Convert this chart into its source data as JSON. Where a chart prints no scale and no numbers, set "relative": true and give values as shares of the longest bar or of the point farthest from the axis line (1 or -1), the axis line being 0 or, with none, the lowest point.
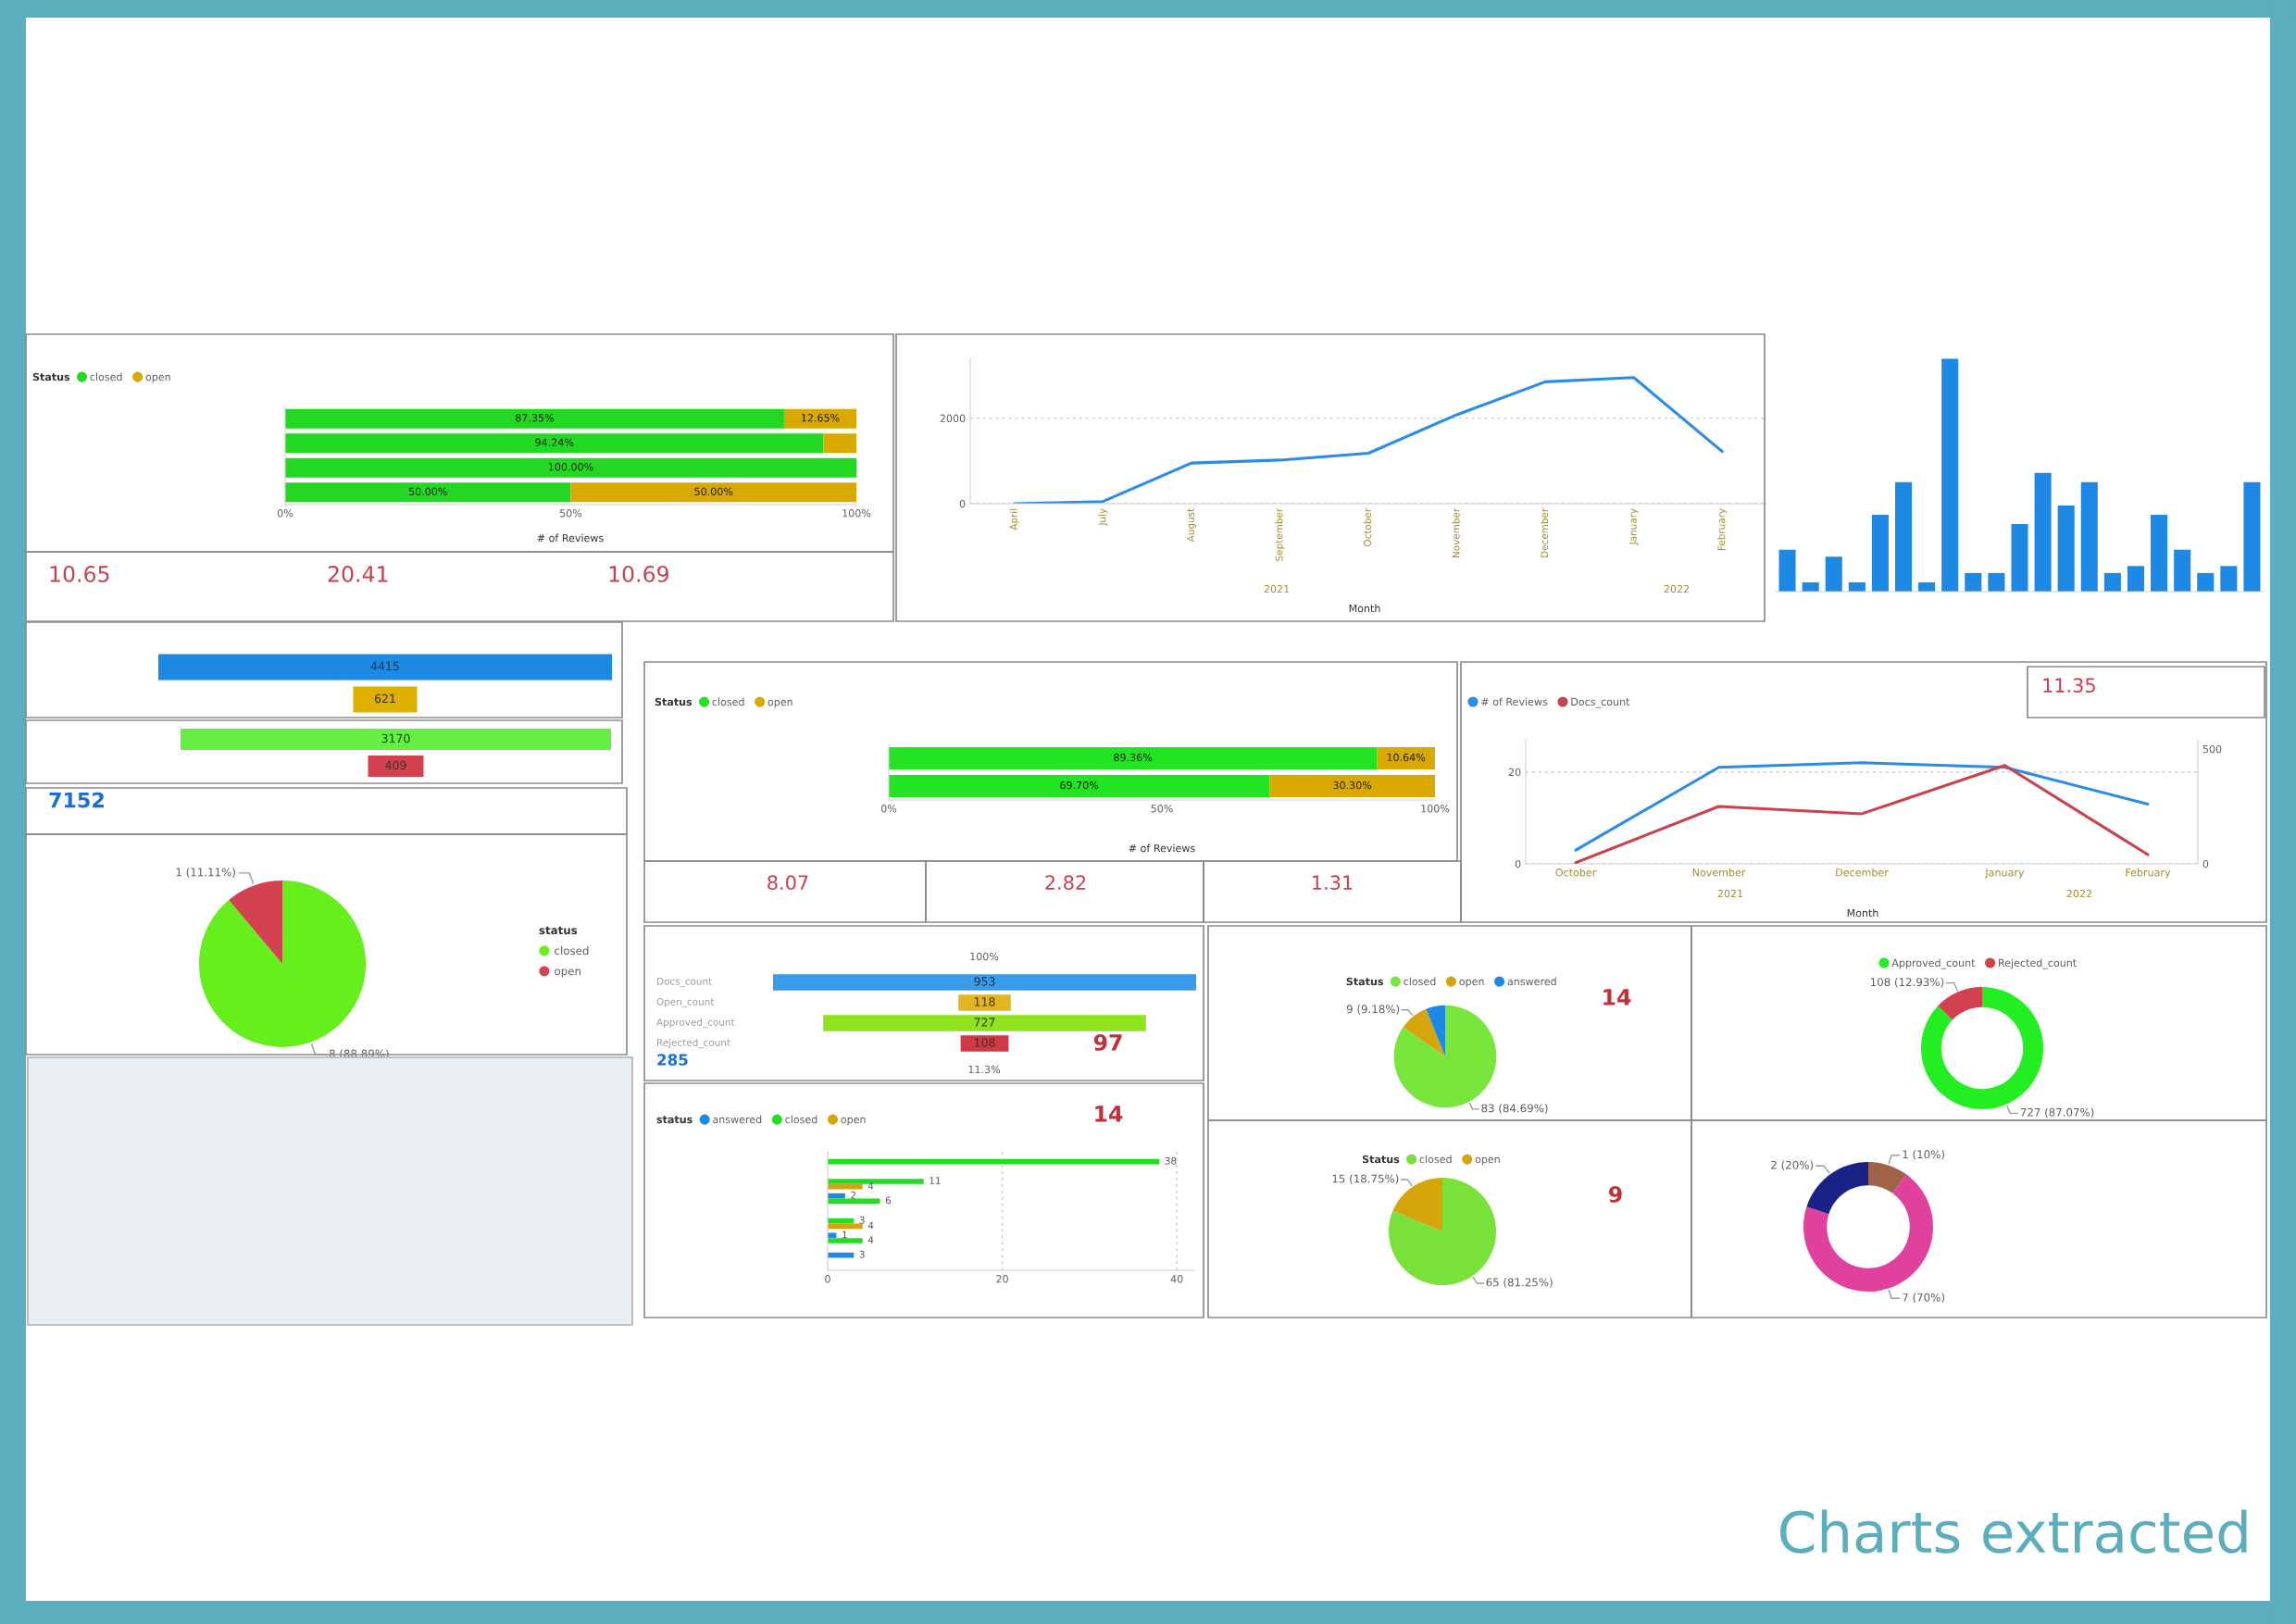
{
  "chart_data": [
    {
      "type": "bar",
      "orientation": "horizontal",
      "stacked": true,
      "categories": [
        null,
        null,
        null,
        null
      ],
      "series": [
        {
          "name": "closed",
          "color": "#22d822",
          "values": [
            87.35,
            94.24,
            100,
            50
          ],
          "value_labels": [
            "87.35%",
            "94.24%",
            "100.00%",
            "50.00%"
          ]
        },
        {
          "name": "open",
          "color": "#d9a900",
          "values": [
            12.65,
            5.76,
            null,
            50
          ],
          "value_labels": [
            "12.65%",
            null,
            null,
            "50.00%"
          ]
        }
      ],
      "xlim": [
        0,
        100
      ],
      "xticks": [
        {
          "value": 0,
          "label": "0%"
        },
        {
          "value": 50,
          "label": "50%"
        },
        {
          "value": 100,
          "label": "100%"
        }
      ],
      "xlabel": "# of Reviews",
      "legend": "top left",
      "legend_title": "Status"
    },
    {
      "type": "other",
      "annotations": [
        "10.65",
        "20.41",
        "10.69"
      ]
    },
    {
      "type": "line",
      "categories": [
        "April",
        "July",
        "August",
        "September",
        "October",
        "November",
        "December",
        "January",
        "February"
      ],
      "series": [
        {
          "color": "#2b8ce6",
          "values": [
            0,
            50,
            950,
            1020,
            1180,
            2080,
            2850,
            2950,
            1220
          ]
        }
      ],
      "ylim": [
        0,
        3400
      ],
      "yticks": [
        0,
        2000
      ],
      "xlabel": "Month",
      "grid": "y",
      "annotations": [
        "2021",
        "2022"
      ]
    },
    {
      "type": "bar",
      "relative": true,
      "categories": [
        null,
        null,
        null,
        null,
        null,
        null,
        null,
        null,
        null,
        null,
        null,
        null,
        null,
        null,
        null,
        null,
        null,
        null,
        null,
        null,
        null
      ],
      "values": [
        0.18,
        0.04,
        0.15,
        0.04,
        0.33,
        0.47,
        0.04,
        1,
        0.08,
        0.08,
        0.29,
        0.51,
        0.37,
        0.47,
        0.08,
        0.11,
        0.33,
        0.18,
        0.08,
        0.11,
        0.47
      ],
      "color": "#1e88e5"
    },
    {
      "type": "other",
      "categories": [
        null,
        null
      ],
      "values": [
        4415,
        621
      ],
      "colors": [
        "#1e88e5",
        "#e0b000"
      ],
      "data_labels": true
    },
    {
      "type": "other",
      "categories": [
        null,
        null
      ],
      "values": [
        3170,
        409
      ],
      "colors": [
        "#66ee44",
        "#d5404e"
      ],
      "data_labels": true
    },
    {
      "type": "other",
      "annotations": [
        "7152"
      ]
    },
    {
      "type": "pie",
      "categories": [
        "closed",
        "open"
      ],
      "values": [
        8,
        1
      ],
      "colors": [
        "#66ef1c",
        "#d4414f"
      ],
      "value_labels": [
        "8 (88.89%)",
        "1 (11.11%)"
      ],
      "legend": "right",
      "legend_title": "status"
    },
    {
      "type": "bar",
      "orientation": "horizontal",
      "stacked": true,
      "categories": [
        null,
        null
      ],
      "series": [
        {
          "name": "closed",
          "color": "#22e422",
          "values": [
            89.36,
            69.7
          ],
          "value_labels": [
            "89.36%",
            "69.70%"
          ]
        },
        {
          "name": "open",
          "color": "#d9a900",
          "values": [
            10.64,
            30.3
          ],
          "value_labels": [
            "10.64%",
            "30.30%"
          ]
        }
      ],
      "xlim": [
        0,
        100
      ],
      "xticks": [
        {
          "value": 0,
          "label": "0%"
        },
        {
          "value": 50,
          "label": "50%"
        },
        {
          "value": 100,
          "label": "100%"
        }
      ],
      "xlabel": "# of Reviews",
      "legend": "top left",
      "legend_title": "Status"
    },
    {
      "type": "other",
      "annotations": [
        "8.07",
        "2.82",
        "1.31"
      ]
    },
    {
      "type": "line",
      "categories": [
        "October",
        "November",
        "December",
        "January",
        "February"
      ],
      "series": [
        {
          "name": "# of Reviews",
          "color": "#2b8ce6",
          "values": [
            3,
            21,
            22,
            21,
            13
          ]
        },
        {
          "name": "Docs_count",
          "color": "#c8434f",
          "values": [
            5,
            250,
            218,
            428,
            40
          ],
          "axis": "y2"
        }
      ],
      "ylim": [
        0,
        27
      ],
      "yticks": [
        0,
        20
      ],
      "y2lim": [
        0,
        540
      ],
      "y2ticks": [
        0,
        500
      ],
      "xlabel": "Month",
      "grid": "y",
      "legend": "top left",
      "annotations": [
        "2021",
        "2022"
      ]
    },
    {
      "type": "other",
      "annotations": [
        "11.35"
      ]
    },
    {
      "type": "other",
      "categories": [
        "Docs_count",
        "Open_count",
        "Approved_count",
        "Rejected_count"
      ],
      "values": [
        953,
        118,
        727,
        108
      ],
      "colors": [
        "#3a9ce8",
        "#e3b520",
        "#8fe31a",
        "#cf3a47"
      ],
      "data_labels": true,
      "annotations": [
        "100%",
        "11.3%"
      ]
    },
    {
      "type": "other",
      "annotations": [
        "285"
      ]
    },
    {
      "type": "other",
      "annotations": [
        "97"
      ]
    },
    {
      "type": "pie",
      "categories": [
        "closed",
        "open",
        "answered"
      ],
      "values": [
        83,
        9,
        6
      ],
      "colors": [
        "#78e63a",
        "#d6a50a",
        "#1e88e5"
      ],
      "value_labels": [
        "83 (84.69%)",
        "9 (9.18%)",
        null
      ],
      "legend": "top",
      "legend_title": "Status"
    },
    {
      "type": "other",
      "annotations": [
        "14"
      ]
    },
    {
      "type": "donut",
      "categories": [
        "Approved_count",
        "Rejected_count"
      ],
      "values": [
        727,
        108
      ],
      "colors": [
        "#22ee22",
        "#d3414e"
      ],
      "value_labels": [
        "727 (87.07%)",
        "108 (12.93%)"
      ],
      "legend": "top"
    },
    {
      "type": "bar",
      "orientation": "horizontal",
      "categories": [
        null,
        null,
        null,
        null,
        null,
        null
      ],
      "series": [
        {
          "name": "answered",
          "color": "#1e88e5",
          "values": [
            null,
            null,
            2,
            null,
            1,
            3
          ]
        },
        {
          "name": "closed",
          "color": "#22dd22",
          "values": [
            38,
            11,
            6,
            3,
            4,
            null
          ]
        },
        {
          "name": "open",
          "color": "#d6a50a",
          "values": [
            null,
            4,
            null,
            4,
            null,
            null
          ]
        }
      ],
      "xlim": [
        0,
        42
      ],
      "xticks": [
        0,
        20,
        40
      ],
      "grid": "x",
      "data_labels": true,
      "legend": "top left",
      "legend_title": "status"
    },
    {
      "type": "other",
      "annotations": [
        "14"
      ]
    },
    {
      "type": "pie",
      "categories": [
        "closed",
        "open"
      ],
      "values": [
        65,
        15
      ],
      "colors": [
        "#78e23a",
        "#d6a50a"
      ],
      "value_labels": [
        "65 (81.25%)",
        "15 (18.75%)"
      ],
      "legend": "top",
      "legend_title": "Status"
    },
    {
      "type": "other",
      "annotations": [
        "9"
      ]
    },
    {
      "type": "donut",
      "categories": [
        null,
        null,
        null
      ],
      "values": [
        1,
        7,
        2
      ],
      "colors": [
        "#a0634a",
        "#e0409e",
        "#1a2288"
      ],
      "value_labels": [
        "1 (10%)",
        "7 (70%)",
        "2 (20%)"
      ]
    },
    {
      "type": "other",
      "annotations": [
        "Charts extracted"
      ]
    }
  ]
}
